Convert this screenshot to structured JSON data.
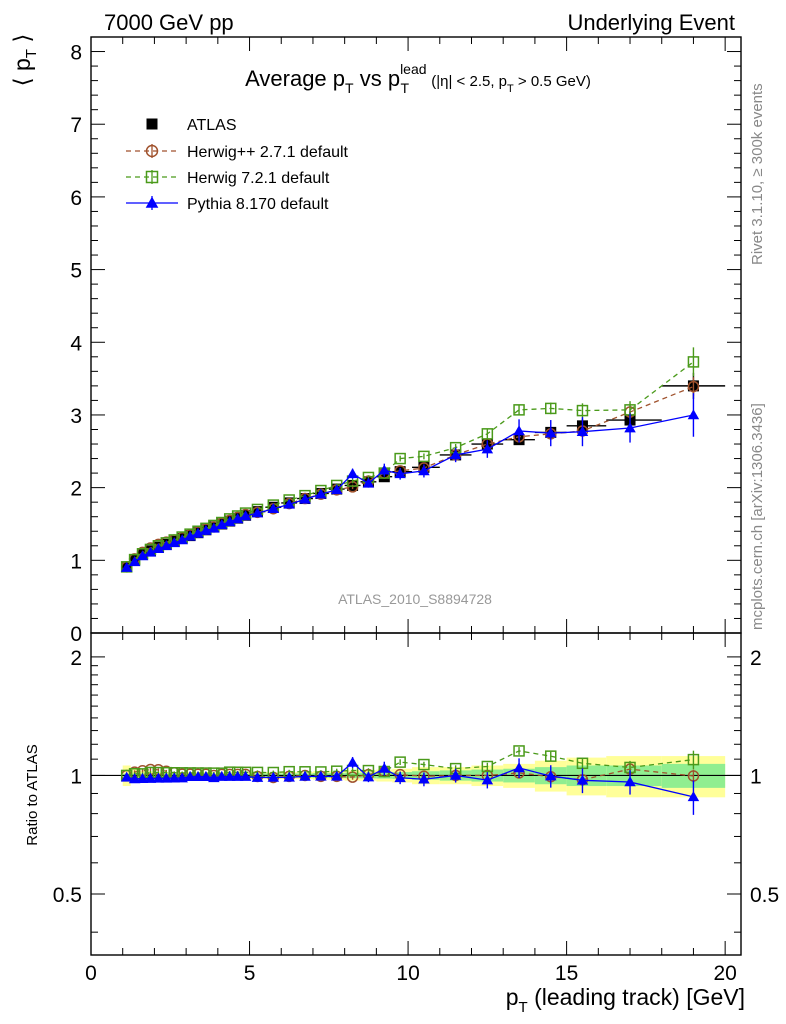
{
  "header": {
    "left": "7000 GeV pp",
    "right": "Underlying Event"
  },
  "side_labels": {
    "top": "Rivet 3.1.10, ≥ 300k events",
    "bottom": "mcplots.cern.ch [arXiv:1306.3436]"
  },
  "chart_data": {
    "type": "line",
    "title": {
      "main": "Average p",
      "main_sub": "T",
      "vs": " vs p",
      "vs_sup": "lead",
      "vs_sub": "T",
      "cut_a": " (|η| < 2.5, p",
      "cut_sub": "T",
      "cut_b": " > 0.5 GeV)"
    },
    "watermark": "ATLAS_2010_S8894728",
    "xlabel": {
      "main": "p",
      "sub": "T",
      "rest": " (leading track) [GeV]"
    },
    "ylabel": {
      "left": "⟨ p",
      "sub": "T",
      "right": " ⟩"
    },
    "ratio_ylabel": "Ratio to ATLAS",
    "xlim": [
      0,
      20.5
    ],
    "ylim": [
      0,
      8.2
    ],
    "ratio_ylim": [
      0.35,
      2.3
    ],
    "x_ticks": [
      "0",
      "5",
      "10",
      "15",
      "20"
    ],
    "y_ticks": [
      "0",
      "1",
      "2",
      "3",
      "4",
      "5",
      "6",
      "7",
      "8"
    ],
    "ratio_ticks": [
      "0.5",
      "1",
      "2"
    ],
    "x": [
      1.125,
      1.375,
      1.625,
      1.875,
      2.125,
      2.375,
      2.625,
      2.875,
      3.125,
      3.375,
      3.625,
      3.875,
      4.125,
      4.375,
      4.625,
      4.875,
      5.25,
      5.75,
      6.25,
      6.75,
      7.25,
      7.75,
      8.25,
      8.75,
      9.25,
      9.75,
      10.5,
      11.5,
      12.5,
      13.5,
      14.5,
      15.5,
      17.0,
      19.0
    ],
    "series": [
      {
        "name": "ATLAS",
        "color": "#000000",
        "marker": "square-filled",
        "values": [
          0.91,
          1.0,
          1.08,
          1.13,
          1.18,
          1.22,
          1.26,
          1.3,
          1.34,
          1.38,
          1.42,
          1.46,
          1.5,
          1.54,
          1.58,
          1.62,
          1.67,
          1.73,
          1.79,
          1.85,
          1.92,
          1.98,
          2.03,
          2.08,
          2.15,
          2.22,
          2.28,
          2.45,
          2.6,
          2.66,
          2.76,
          2.85,
          2.93,
          3.4
        ],
        "errors": [
          0.02,
          0.02,
          0.02,
          0.02,
          0.02,
          0.02,
          0.02,
          0.02,
          0.02,
          0.02,
          0.02,
          0.02,
          0.02,
          0.02,
          0.02,
          0.02,
          0.02,
          0.02,
          0.02,
          0.02,
          0.03,
          0.03,
          0.03,
          0.03,
          0.04,
          0.04,
          0.04,
          0.05,
          0.06,
          0.07,
          0.08,
          0.1,
          0.12,
          0.18
        ]
      },
      {
        "name": "Herwig++ 2.7.1 default",
        "color": "#a0522d",
        "marker": "circle-open",
        "dashed": true,
        "values": [
          0.91,
          1.02,
          1.11,
          1.17,
          1.22,
          1.25,
          1.28,
          1.31,
          1.35,
          1.39,
          1.43,
          1.46,
          1.51,
          1.55,
          1.59,
          1.63,
          1.66,
          1.71,
          1.78,
          1.85,
          1.91,
          1.97,
          2.01,
          2.09,
          2.2,
          2.23,
          2.27,
          2.45,
          2.6,
          2.7,
          2.74,
          2.78,
          3.04,
          3.39
        ],
        "errors": [
          0.01,
          0.01,
          0.01,
          0.01,
          0.01,
          0.01,
          0.01,
          0.01,
          0.01,
          0.01,
          0.01,
          0.01,
          0.01,
          0.01,
          0.01,
          0.02,
          0.02,
          0.02,
          0.02,
          0.02,
          0.02,
          0.02,
          0.03,
          0.03,
          0.03,
          0.04,
          0.04,
          0.05,
          0.05,
          0.06,
          0.07,
          0.08,
          0.1,
          0.13
        ]
      },
      {
        "name": "Herwig 7.2.1 default",
        "color": "#4a9a1a",
        "marker": "square-open",
        "dashed": true,
        "values": [
          0.91,
          1.01,
          1.09,
          1.15,
          1.2,
          1.24,
          1.28,
          1.32,
          1.36,
          1.4,
          1.44,
          1.48,
          1.52,
          1.57,
          1.61,
          1.65,
          1.7,
          1.76,
          1.83,
          1.89,
          1.96,
          2.03,
          2.09,
          2.14,
          2.2,
          2.4,
          2.43,
          2.55,
          2.74,
          3.07,
          3.09,
          3.06,
          3.07,
          3.73
        ],
        "errors": [
          0.01,
          0.01,
          0.01,
          0.01,
          0.01,
          0.01,
          0.01,
          0.01,
          0.01,
          0.01,
          0.01,
          0.01,
          0.01,
          0.01,
          0.01,
          0.02,
          0.02,
          0.02,
          0.02,
          0.02,
          0.02,
          0.03,
          0.03,
          0.03,
          0.04,
          0.04,
          0.04,
          0.05,
          0.06,
          0.07,
          0.08,
          0.1,
          0.12,
          0.2
        ]
      },
      {
        "name": "Pythia 8.170 default",
        "color": "#0000ff",
        "marker": "triangle-filled",
        "values": [
          0.9,
          0.98,
          1.06,
          1.11,
          1.16,
          1.2,
          1.24,
          1.28,
          1.33,
          1.37,
          1.41,
          1.44,
          1.49,
          1.53,
          1.57,
          1.61,
          1.65,
          1.71,
          1.77,
          1.84,
          1.91,
          1.97,
          2.19,
          2.06,
          2.24,
          2.19,
          2.23,
          2.45,
          2.53,
          2.78,
          2.75,
          2.77,
          2.82,
          3.0
        ],
        "errors": [
          0.01,
          0.01,
          0.01,
          0.01,
          0.01,
          0.01,
          0.01,
          0.01,
          0.01,
          0.01,
          0.01,
          0.01,
          0.01,
          0.02,
          0.02,
          0.02,
          0.02,
          0.02,
          0.02,
          0.03,
          0.03,
          0.04,
          0.07,
          0.06,
          0.09,
          0.08,
          0.09,
          0.1,
          0.12,
          0.16,
          0.18,
          0.2,
          0.2,
          0.3
        ]
      }
    ],
    "ratio_band": {
      "stat_half_width": [
        0.01,
        0.01,
        0.01,
        0.01,
        0.01,
        0.01,
        0.01,
        0.01,
        0.01,
        0.01,
        0.01,
        0.01,
        0.01,
        0.01,
        0.01,
        0.01,
        0.012,
        0.012,
        0.012,
        0.012,
        0.014,
        0.015,
        0.016,
        0.017,
        0.018,
        0.02,
        0.025,
        0.03,
        0.035,
        0.04,
        0.05,
        0.06,
        0.06,
        0.07
      ],
      "total_half_width": [
        0.06,
        0.04,
        0.03,
        0.025,
        0.02,
        0.02,
        0.02,
        0.02,
        0.02,
        0.02,
        0.02,
        0.02,
        0.02,
        0.02,
        0.02,
        0.02,
        0.02,
        0.02,
        0.02,
        0.02,
        0.025,
        0.025,
        0.03,
        0.03,
        0.035,
        0.04,
        0.05,
        0.05,
        0.06,
        0.07,
        0.09,
        0.11,
        0.12,
        0.12
      ],
      "stat_color": "#90ee90",
      "total_color": "#ffff99"
    }
  }
}
